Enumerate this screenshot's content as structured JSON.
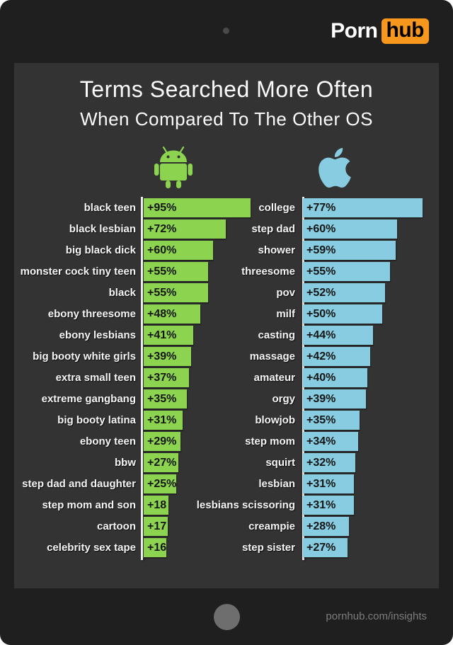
{
  "frame": {
    "logo": {
      "porn": "Porn",
      "hub": "hub"
    },
    "footer_url": "pornhub.com/insights"
  },
  "title": {
    "line1": "Terms Searched More Often",
    "line2": "When Compared To The Other OS"
  },
  "colors": {
    "android_green": "#8cd450",
    "apple_blue": "#87cce0",
    "logo_orange": "#f7971d",
    "panel_bg": "#333333",
    "frame_bg": "#1f1f1f"
  },
  "chart_data": {
    "type": "bar",
    "orientation": "horizontal",
    "title": "Terms Searched More Often When Compared To The Other OS",
    "value_unit": "percent increase",
    "legend_position": "icons-above-columns",
    "grid": false,
    "series": [
      {
        "name": "Android",
        "icon": "android-icon",
        "color": "#8cd450",
        "items": [
          {
            "term": "black teen",
            "value": 95,
            "label": "+95%"
          },
          {
            "term": "black lesbian",
            "value": 72,
            "label": "+72%"
          },
          {
            "term": "big black dick",
            "value": 60,
            "label": "+60%"
          },
          {
            "term": "monster cock tiny teen",
            "value": 55,
            "label": "+55%"
          },
          {
            "term": "black",
            "value": 55,
            "label": "+55%"
          },
          {
            "term": "ebony threesome",
            "value": 48,
            "label": "+48%"
          },
          {
            "term": "ebony lesbians",
            "value": 41,
            "label": "+41%"
          },
          {
            "term": "big booty white girls",
            "value": 39,
            "label": "+39%"
          },
          {
            "term": "extra small teen",
            "value": 37,
            "label": "+37%"
          },
          {
            "term": "extreme gangbang",
            "value": 35,
            "label": "+35%"
          },
          {
            "term": "big booty latina",
            "value": 31,
            "label": "+31%"
          },
          {
            "term": "ebony teen",
            "value": 29,
            "label": "+29%"
          },
          {
            "term": "bbw",
            "value": 27,
            "label": "+27%"
          },
          {
            "term": "step dad and daughter",
            "value": 25,
            "label": "+25%"
          },
          {
            "term": "step mom and son",
            "value": 18,
            "label": "+18"
          },
          {
            "term": "cartoon",
            "value": 17,
            "label": "+17"
          },
          {
            "term": "celebrity sex tape",
            "value": 16,
            "label": "+16"
          }
        ]
      },
      {
        "name": "Apple",
        "icon": "apple-icon",
        "color": "#87cce0",
        "items": [
          {
            "term": "college",
            "value": 77,
            "label": "+77%"
          },
          {
            "term": "step dad",
            "value": 60,
            "label": "+60%"
          },
          {
            "term": "shower",
            "value": 59,
            "label": "+59%"
          },
          {
            "term": "threesome",
            "value": 55,
            "label": "+55%"
          },
          {
            "term": "pov",
            "value": 52,
            "label": "+52%"
          },
          {
            "term": "milf",
            "value": 50,
            "label": "+50%"
          },
          {
            "term": "casting",
            "value": 44,
            "label": "+44%"
          },
          {
            "term": "massage",
            "value": 42,
            "label": "+42%"
          },
          {
            "term": "amateur",
            "value": 40,
            "label": "+40%"
          },
          {
            "term": "orgy",
            "value": 39,
            "label": "+39%"
          },
          {
            "term": "blowjob",
            "value": 35,
            "label": "+35%"
          },
          {
            "term": "step mom",
            "value": 34,
            "label": "+34%"
          },
          {
            "term": "squirt",
            "value": 32,
            "label": "+32%"
          },
          {
            "term": "lesbian",
            "value": 31,
            "label": "+31%"
          },
          {
            "term": "lesbians scissoring",
            "value": 31,
            "label": "+31%"
          },
          {
            "term": "creampie",
            "value": 28,
            "label": "+28%"
          },
          {
            "term": "step sister",
            "value": 27,
            "label": "+27%"
          }
        ]
      }
    ]
  }
}
